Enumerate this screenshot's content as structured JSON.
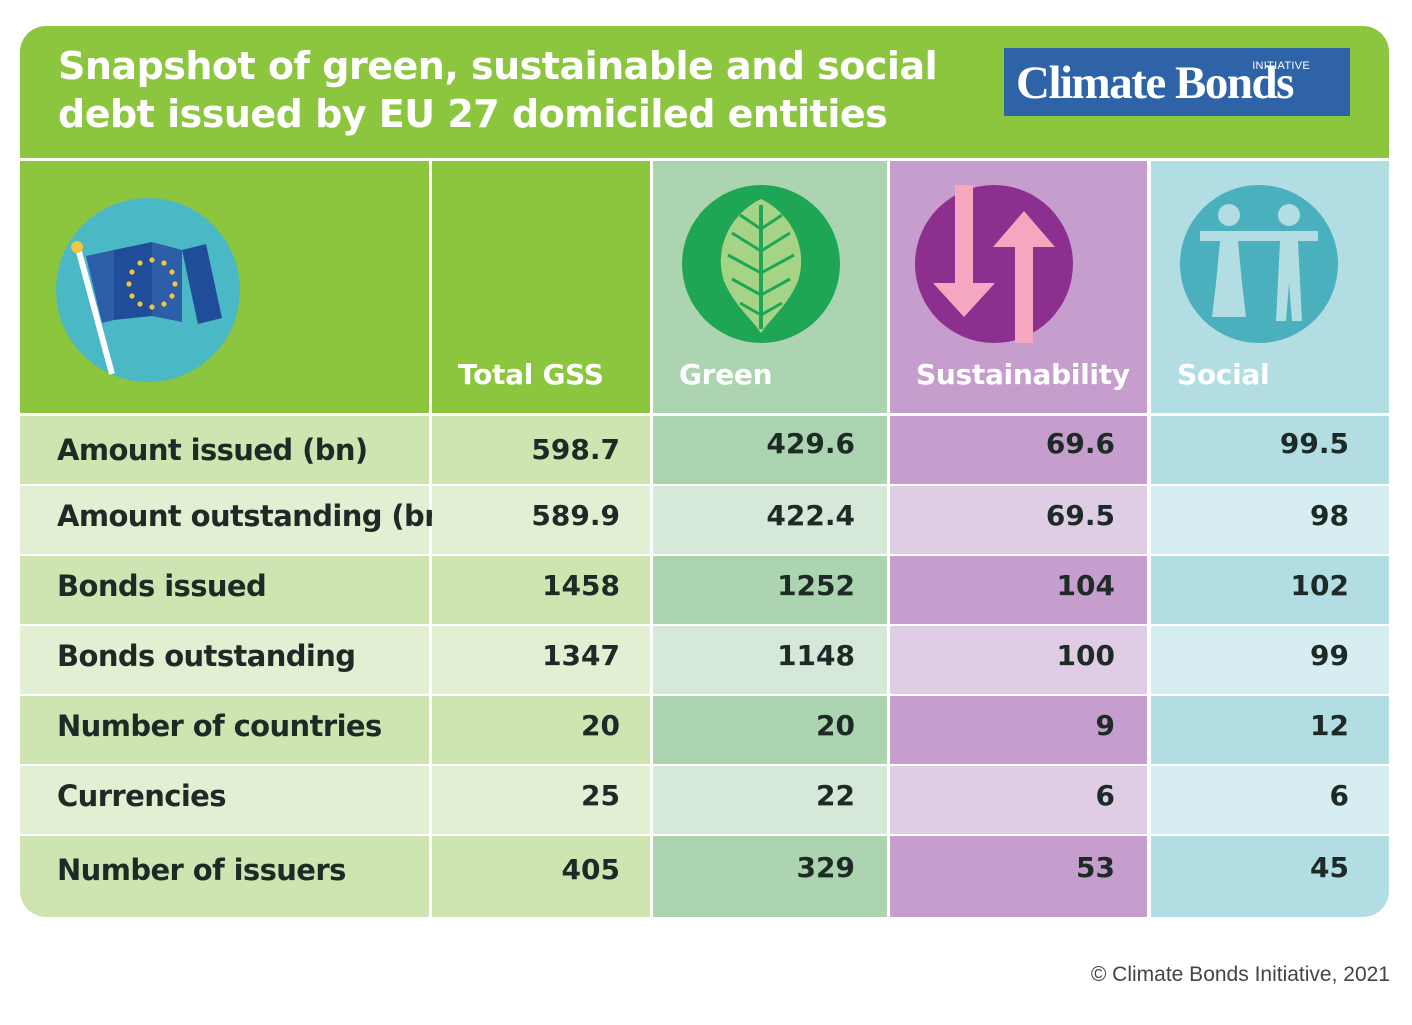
{
  "header": {
    "title_line1": "Snapshot of green, sustainable and social",
    "title_line2": "debt issued by EU 27 domiciled entities",
    "logo_main": "Climate Bonds",
    "logo_tag": "INITIATIVE"
  },
  "columns": [
    {
      "label": "Total GSS",
      "icon": "none"
    },
    {
      "label": "Green",
      "icon": "leaf-icon"
    },
    {
      "label": "Sustainability",
      "icon": "arrows-up-down-icon"
    },
    {
      "label": "Social",
      "icon": "people-icon"
    }
  ],
  "rows": [
    {
      "label": "Amount issued (bn)",
      "values": [
        "598.7",
        "429.6",
        "69.6",
        "99.5"
      ]
    },
    {
      "label": "Amount outstanding (bn)",
      "values": [
        "589.9",
        "422.4",
        "69.5",
        "98"
      ]
    },
    {
      "label": "Bonds issued",
      "values": [
        "1458",
        "1252",
        "104",
        "102"
      ]
    },
    {
      "label": "Bonds outstanding",
      "values": [
        "1347",
        "1148",
        "100",
        "99"
      ]
    },
    {
      "label": "Number of countries",
      "values": [
        "20",
        "20",
        "9",
        "12"
      ]
    },
    {
      "label": "Currencies",
      "values": [
        "25",
        "22",
        "6",
        "6"
      ]
    },
    {
      "label": "Number of issuers",
      "values": [
        "405",
        "329",
        "53",
        "45"
      ]
    }
  ],
  "footer": {
    "copyright": "© Climate Bonds Initiative, 2021"
  },
  "colors": {
    "brand_green": "#8cc63f",
    "green_col": "#acd4b1",
    "sustainability_col": "#c59ecd",
    "social_col": "#b2dde3",
    "logo_blue": "#2f63a8"
  }
}
